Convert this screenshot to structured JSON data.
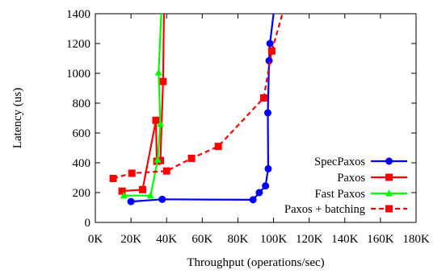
{
  "chart_data": {
    "type": "line",
    "title": "",
    "xlabel": "Throughput (operations/sec)",
    "ylabel": "Latency (us)",
    "xlim": [
      0,
      180000
    ],
    "ylim": [
      0,
      1400
    ],
    "x_ticks": [
      0,
      20000,
      40000,
      60000,
      80000,
      100000,
      120000,
      140000,
      160000,
      180000
    ],
    "x_tick_labels": [
      "0K",
      "20K",
      "40K",
      "60K",
      "80K",
      "100K",
      "120K",
      "140K",
      "160K",
      "180K"
    ],
    "y_ticks": [
      0,
      200,
      400,
      600,
      800,
      1000,
      1200,
      1400
    ],
    "y_tick_labels": [
      "0",
      "200",
      "400",
      "600",
      "800",
      "1000",
      "1200",
      "1400"
    ],
    "grid": false,
    "legend_position": "bottom-right",
    "series": [
      {
        "name": "SpecPaxos",
        "color": "#0000ff",
        "marker": "circle",
        "dash": "solid",
        "x": [
          20000,
          37500,
          88500,
          92000,
          95500,
          97000,
          96800,
          97500,
          98000,
          100000
        ],
        "y": [
          140,
          155,
          152,
          200,
          245,
          360,
          735,
          1085,
          1200,
          1400
        ]
      },
      {
        "name": "Paxos",
        "color": "#ff0000",
        "marker": "square",
        "dash": "solid",
        "x": [
          15000,
          26500,
          34000,
          34500,
          36500,
          38000,
          38500
        ],
        "y": [
          210,
          220,
          685,
          410,
          415,
          945,
          1400
        ]
      },
      {
        "name": "Fast Paxos",
        "color": "#00ff00",
        "marker": "triangle",
        "dash": "solid",
        "x": [
          16000,
          31000,
          35000,
          36500,
          35500,
          37000
        ],
        "y": [
          180,
          180,
          420,
          660,
          1005,
          1400
        ]
      },
      {
        "name": "Paxos + batching",
        "color": "#ff0000",
        "marker": "square",
        "dash": "dashed",
        "x": [
          10000,
          20500,
          40000,
          54000,
          69000,
          94500,
          99000,
          105000
        ],
        "y": [
          295,
          330,
          345,
          430,
          510,
          835,
          1150,
          1400
        ]
      }
    ]
  }
}
